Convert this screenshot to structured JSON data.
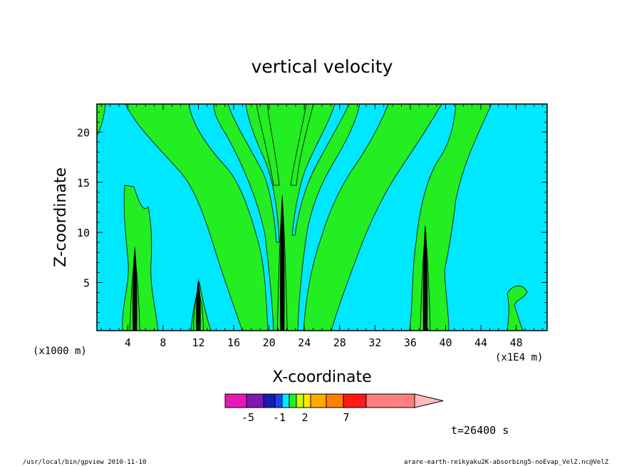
{
  "chart_data": {
    "type": "heatmap",
    "title": "vertical velocity",
    "xlabel": "X-coordinate",
    "ylabel": "Z-coordinate",
    "x_unit_note": "(x1E4 m)",
    "y_unit_note": "(x1000 m)",
    "xlim": [
      0.5,
      51.5
    ],
    "ylim": [
      0.2,
      22.8
    ],
    "x_ticks": [
      4,
      8,
      12,
      16,
      20,
      24,
      28,
      32,
      36,
      40,
      44,
      48
    ],
    "x_tick_labels": [
      "4",
      "8",
      "12",
      "16",
      "20",
      "24",
      "28",
      "32",
      "36",
      "40",
      "44",
      "48"
    ],
    "y_ticks": [
      5,
      10,
      15,
      20
    ],
    "y_tick_labels": [
      "5",
      "10",
      "15",
      "20"
    ],
    "grid": false,
    "background_level_color": "#00e8ff",
    "positive_level_color": "#22ee22",
    "updraft_core_color": "#000000",
    "colorbar": {
      "colors": [
        "#e619b3",
        "#7f19b3",
        "#1919b3",
        "#1f3fff",
        "#00e8ff",
        "#22ee22",
        "#ccff00",
        "#ffe600",
        "#ffaa00",
        "#ff7f00",
        "#ff1919",
        "#ff7f7f",
        "#ffbbbb"
      ],
      "tick_labels": [
        "-5",
        "-1",
        "2",
        "7"
      ]
    },
    "time_label": "t=26400 s",
    "updraft_columns": [
      {
        "x": 4.8,
        "top_z": 8.6
      },
      {
        "x": 12.0,
        "top_z": 5.4
      },
      {
        "x": 21.5,
        "top_z": 13.8
      },
      {
        "x": 37.7,
        "top_z": 10.8
      }
    ]
  },
  "footer": {
    "left": "/usr/local/bin/gpview  2010-11-10",
    "right": "arare-earth-reikyaku2K-absorbing5-noEvap_VelZ.nc@VelZ"
  }
}
